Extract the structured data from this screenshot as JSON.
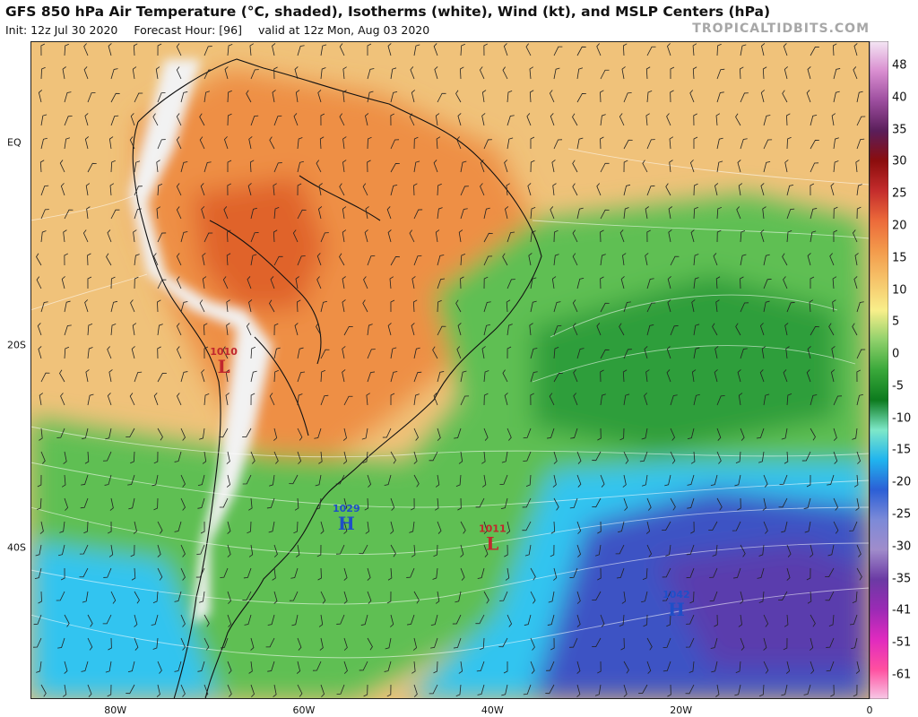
{
  "header": {
    "title": "GFS 850 hPa Air Temperature (°C, shaded), Isotherms (white), Wind (kt), and MSLP Centers (hPa)",
    "init": "Init: 12z Jul 30 2020",
    "forecast_hour": "Forecast Hour: [96]",
    "valid": "valid at 12z Mon, Aug 03 2020",
    "brand": "TROPICALTIDBITS.COM"
  },
  "axes": {
    "lat_labels": [
      {
        "text": "EQ",
        "lat": 0
      },
      {
        "text": "20S",
        "lat": -20
      },
      {
        "text": "40S",
        "lat": -40
      }
    ],
    "lon_labels": [
      {
        "text": "80W",
        "lon": -80
      },
      {
        "text": "60W",
        "lon": -60
      },
      {
        "text": "40W",
        "lon": -40
      },
      {
        "text": "20W",
        "lon": -20
      },
      {
        "text": "0",
        "lon": 0
      }
    ],
    "extent": {
      "lon_min": -89,
      "lon_max": 0,
      "lat_min": -55,
      "lat_max": 10
    }
  },
  "pressure_centers": [
    {
      "type": "L",
      "value": "1010",
      "lon": -68.5,
      "lat": -21,
      "color": "#c1272d"
    },
    {
      "type": "H",
      "value": "1029",
      "lon": -55.5,
      "lat": -36.5,
      "color": "#1f4fc8"
    },
    {
      "type": "L",
      "value": "1011",
      "lon": -40,
      "lat": -38.5,
      "color": "#c1272d"
    },
    {
      "type": "H",
      "value": "1042",
      "lon": -20.5,
      "lat": -45,
      "color": "#1f4fc8"
    }
  ],
  "colorbar": {
    "labels": [
      "48",
      "40",
      "35",
      "30",
      "25",
      "20",
      "15",
      "10",
      "5",
      "0",
      "-5",
      "-10",
      "-15",
      "-20",
      "-25",
      "-30",
      "-35",
      "-41",
      "-51",
      "-61"
    ],
    "stops": [
      "#f4e6f4",
      "#d98ed0",
      "#9c4d9e",
      "#5a1e5a",
      "#8b0d0d",
      "#c42c2c",
      "#ec6a3a",
      "#f39a4b",
      "#f6c46a",
      "#f8ef8a",
      "#8fd06b",
      "#39a83a",
      "#0d7b1e",
      "#7ee8c8",
      "#20b4ee",
      "#2b5fd6",
      "#7c8ad8",
      "#a08ccb",
      "#6b3aa4",
      "#9b2ab5",
      "#e02abf",
      "#ff4fa0",
      "#f7c8e6"
    ]
  },
  "map_colors": {
    "ocean_warm": "#f2c47a",
    "land_tropical": "#ee8f45",
    "land_hot": "#e0672e",
    "andes_white": "#f2f2f2",
    "temperate_green": "#5fbf53",
    "mid_green": "#7fd17a",
    "southern_cyan": "#33c8f2",
    "deep_blue": "#3f4fc4",
    "cold_purple": "#5a3db0"
  }
}
